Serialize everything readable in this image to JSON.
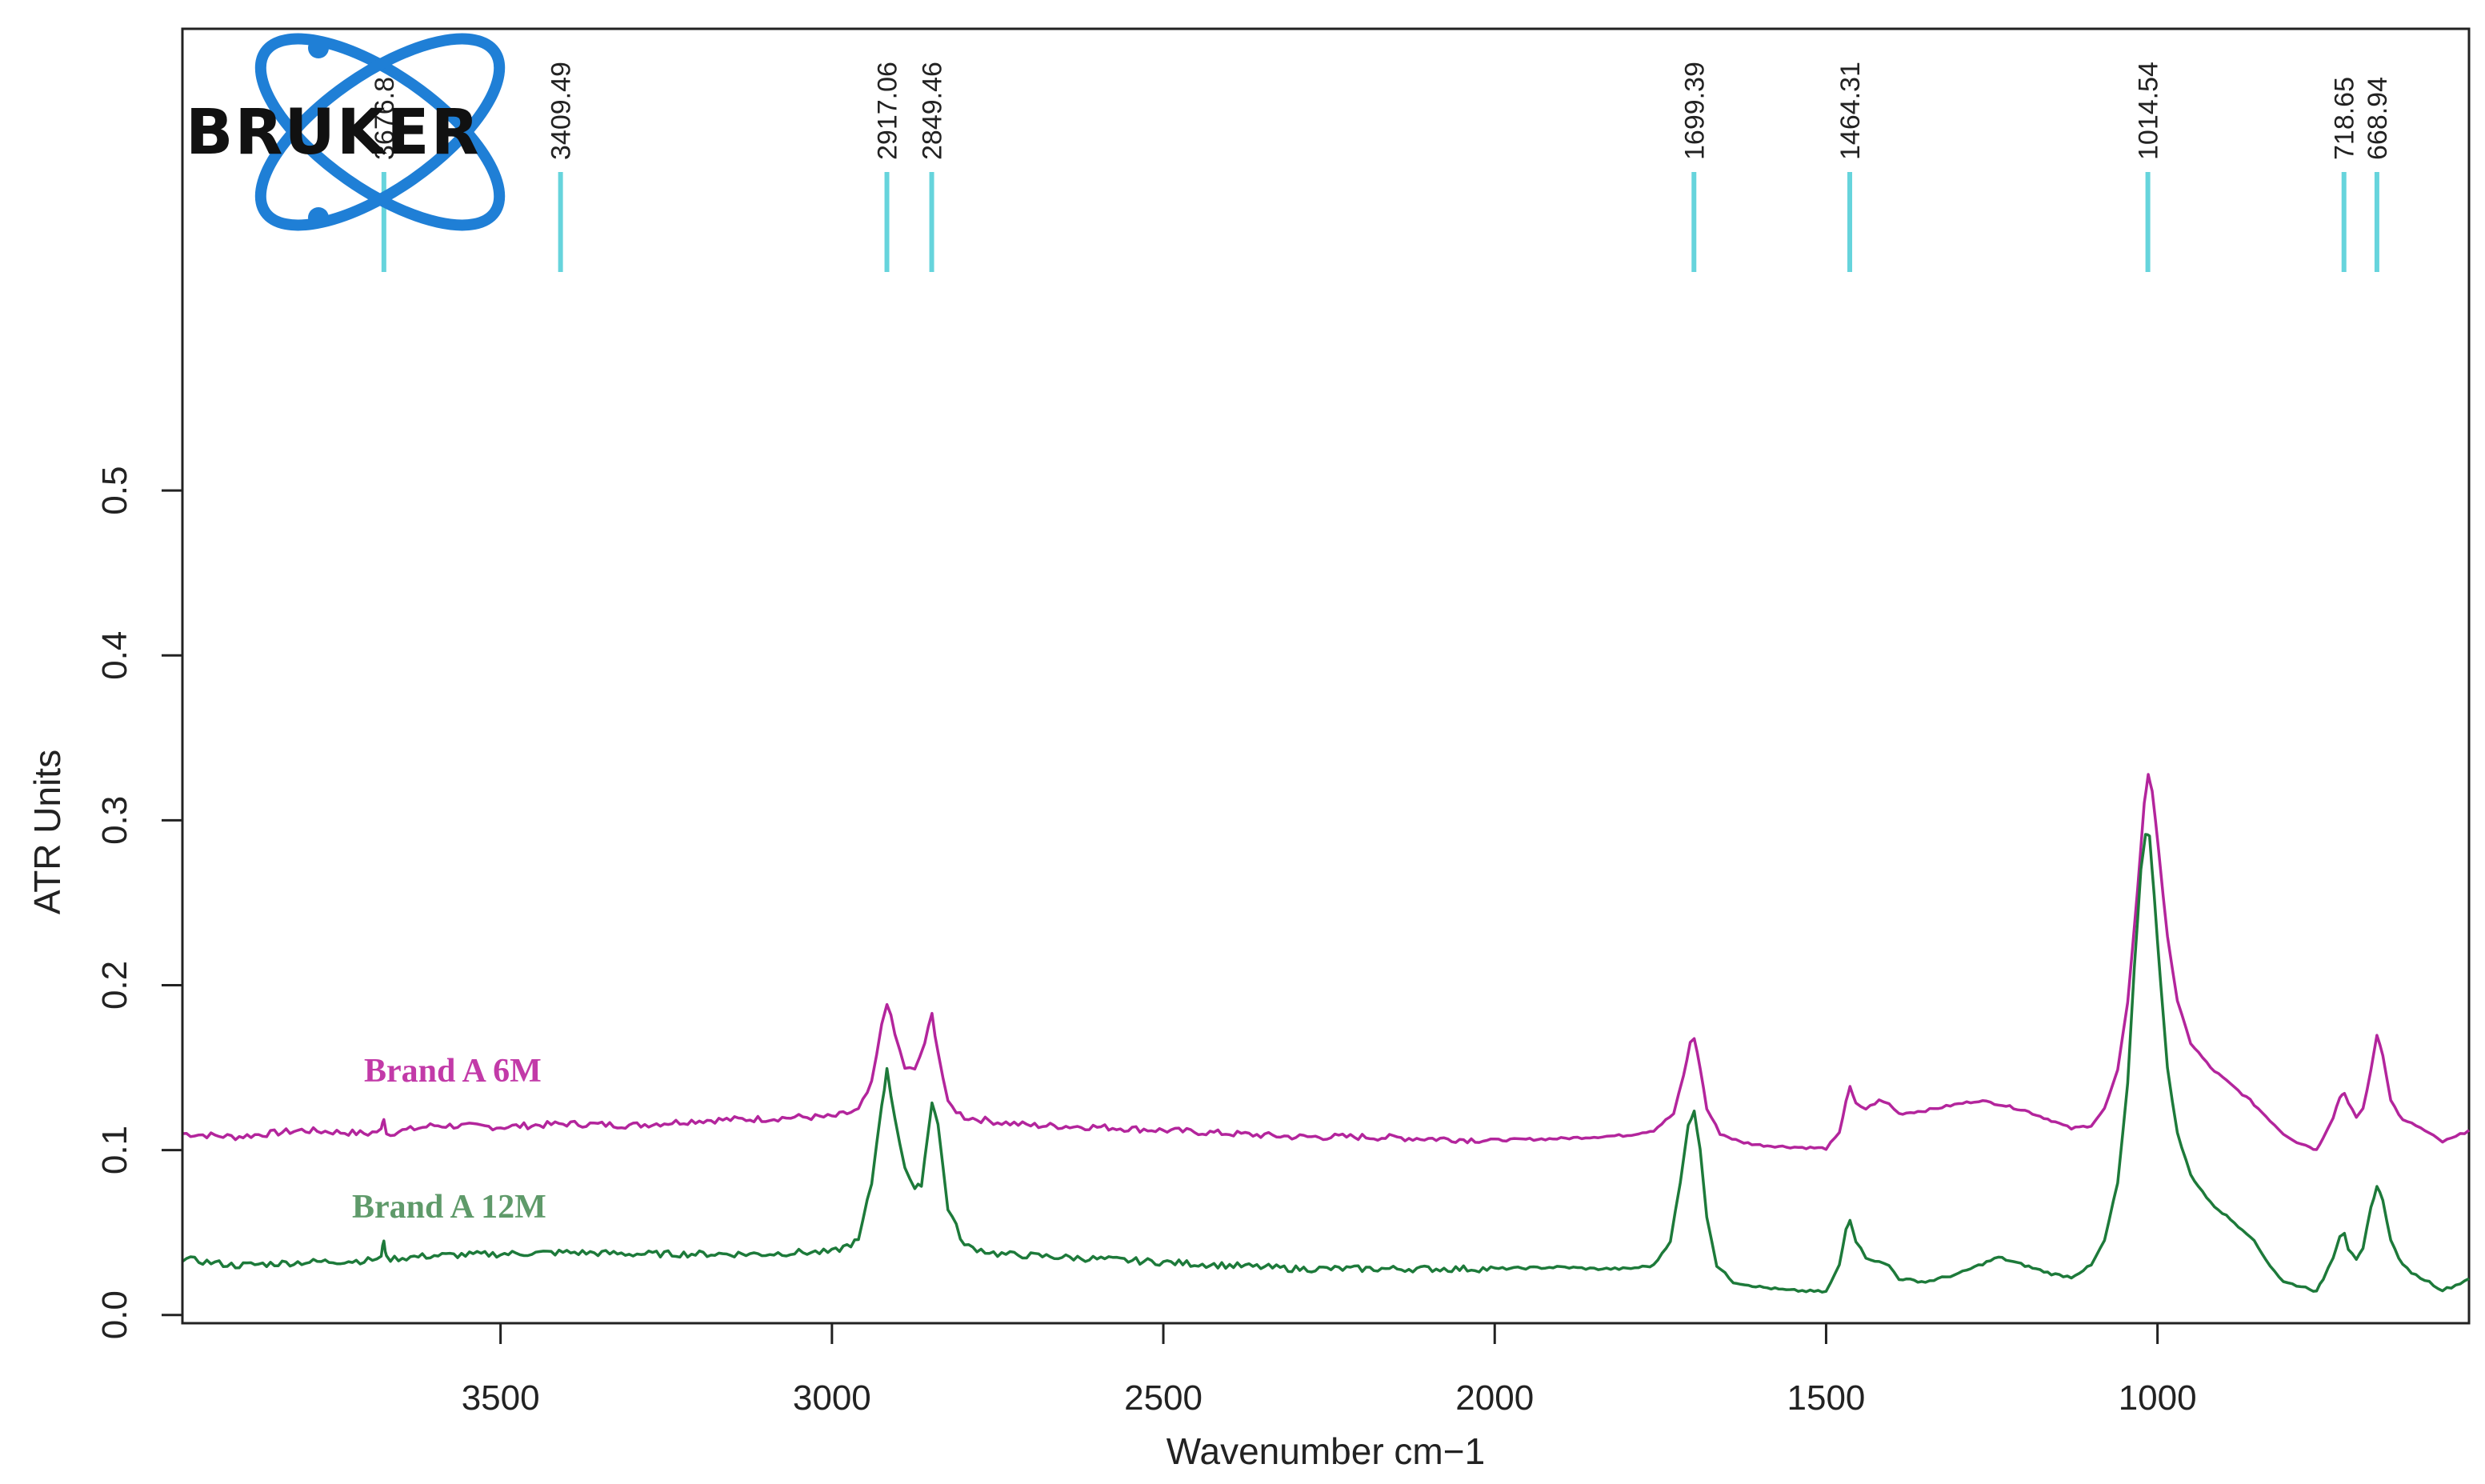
{
  "chart_data": {
    "type": "line",
    "title": "",
    "xlabel": "Wavenumber cm−1",
    "ylabel": "ATR Units",
    "xlim": [
      3980,
      530
    ],
    "ylim": [
      -0.005,
      0.78
    ],
    "x_ticks": [
      3500,
      3000,
      2500,
      2000,
      1500,
      1000
    ],
    "y_ticks": [
      0.0,
      0.1,
      0.2,
      0.3,
      0.4,
      0.5
    ],
    "x_tick_labels": [
      "3500",
      "3000",
      "2500",
      "2000",
      "1500",
      "1000"
    ],
    "y_tick_labels": [
      "0.0",
      "0.1",
      "0.2",
      "0.3",
      "0.4",
      "0.5"
    ],
    "grid": false,
    "peak_markers": [
      {
        "x": 3676,
        "label": "3676.8"
      },
      {
        "x": 3409.49,
        "label": "3409.49"
      },
      {
        "x": 2917.06,
        "label": "2917.06"
      },
      {
        "x": 2849.46,
        "label": "2849.46"
      },
      {
        "x": 1699.39,
        "label": "1699.39"
      },
      {
        "x": 1464.31,
        "label": "1464.31"
      },
      {
        "x": 1014.54,
        "label": "1014.54"
      },
      {
        "x": 718.65,
        "label": "718.65"
      },
      {
        "x": 668.94,
        "label": "668.94"
      }
    ],
    "series": [
      {
        "name": "Brand A 6M",
        "color": "#b3259c",
        "points": [
          [
            3980,
            0.11
          ],
          [
            3900,
            0.108
          ],
          [
            3800,
            0.112
          ],
          [
            3700,
            0.11
          ],
          [
            3680,
            0.112
          ],
          [
            3676,
            0.12
          ],
          [
            3672,
            0.11
          ],
          [
            3600,
            0.115
          ],
          [
            3500,
            0.114
          ],
          [
            3400,
            0.116
          ],
          [
            3300,
            0.115
          ],
          [
            3200,
            0.118
          ],
          [
            3100,
            0.119
          ],
          [
            3050,
            0.12
          ],
          [
            3000,
            0.12
          ],
          [
            2960,
            0.124
          ],
          [
            2940,
            0.14
          ],
          [
            2925,
            0.175
          ],
          [
            2917,
            0.19
          ],
          [
            2905,
            0.17
          ],
          [
            2890,
            0.15
          ],
          [
            2875,
            0.148
          ],
          [
            2860,
            0.165
          ],
          [
            2849,
            0.182
          ],
          [
            2840,
            0.16
          ],
          [
            2825,
            0.128
          ],
          [
            2800,
            0.12
          ],
          [
            2750,
            0.117
          ],
          [
            2700,
            0.115
          ],
          [
            2600,
            0.114
          ],
          [
            2500,
            0.112
          ],
          [
            2400,
            0.11
          ],
          [
            2300,
            0.108
          ],
          [
            2200,
            0.108
          ],
          [
            2100,
            0.107
          ],
          [
            2000,
            0.106
          ],
          [
            1900,
            0.107
          ],
          [
            1850,
            0.108
          ],
          [
            1800,
            0.109
          ],
          [
            1760,
            0.112
          ],
          [
            1730,
            0.122
          ],
          [
            1715,
            0.145
          ],
          [
            1705,
            0.165
          ],
          [
            1699,
            0.168
          ],
          [
            1690,
            0.15
          ],
          [
            1680,
            0.125
          ],
          [
            1660,
            0.11
          ],
          [
            1630,
            0.105
          ],
          [
            1600,
            0.103
          ],
          [
            1560,
            0.102
          ],
          [
            1500,
            0.101
          ],
          [
            1480,
            0.11
          ],
          [
            1470,
            0.13
          ],
          [
            1464,
            0.138
          ],
          [
            1455,
            0.128
          ],
          [
            1440,
            0.125
          ],
          [
            1420,
            0.13
          ],
          [
            1405,
            0.128
          ],
          [
            1390,
            0.122
          ],
          [
            1350,
            0.124
          ],
          [
            1300,
            0.128
          ],
          [
            1270,
            0.13
          ],
          [
            1240,
            0.128
          ],
          [
            1200,
            0.124
          ],
          [
            1160,
            0.118
          ],
          [
            1130,
            0.113
          ],
          [
            1100,
            0.115
          ],
          [
            1080,
            0.125
          ],
          [
            1060,
            0.148
          ],
          [
            1045,
            0.19
          ],
          [
            1030,
            0.258
          ],
          [
            1020,
            0.31
          ],
          [
            1014,
            0.328
          ],
          [
            1008,
            0.318
          ],
          [
            998,
            0.28
          ],
          [
            985,
            0.23
          ],
          [
            970,
            0.19
          ],
          [
            950,
            0.165
          ],
          [
            920,
            0.15
          ],
          [
            890,
            0.14
          ],
          [
            860,
            0.13
          ],
          [
            830,
            0.118
          ],
          [
            810,
            0.11
          ],
          [
            790,
            0.105
          ],
          [
            770,
            0.102
          ],
          [
            760,
            0.1
          ],
          [
            750,
            0.108
          ],
          [
            735,
            0.12
          ],
          [
            725,
            0.132
          ],
          [
            718,
            0.135
          ],
          [
            712,
            0.128
          ],
          [
            700,
            0.12
          ],
          [
            690,
            0.125
          ],
          [
            678,
            0.148
          ],
          [
            669,
            0.17
          ],
          [
            660,
            0.158
          ],
          [
            648,
            0.13
          ],
          [
            630,
            0.118
          ],
          [
            610,
            0.115
          ],
          [
            590,
            0.11
          ],
          [
            570,
            0.105
          ],
          [
            550,
            0.108
          ],
          [
            530,
            0.112
          ]
        ]
      },
      {
        "name": "Brand A 12M",
        "color": "#1d7a3a",
        "points": [
          [
            3980,
            0.034
          ],
          [
            3900,
            0.03
          ],
          [
            3800,
            0.032
          ],
          [
            3700,
            0.033
          ],
          [
            3680,
            0.035
          ],
          [
            3676,
            0.046
          ],
          [
            3672,
            0.034
          ],
          [
            3600,
            0.036
          ],
          [
            3500,
            0.037
          ],
          [
            3400,
            0.038
          ],
          [
            3300,
            0.037
          ],
          [
            3200,
            0.037
          ],
          [
            3100,
            0.037
          ],
          [
            3050,
            0.038
          ],
          [
            3000,
            0.038
          ],
          [
            2960,
            0.045
          ],
          [
            2940,
            0.08
          ],
          [
            2925,
            0.128
          ],
          [
            2917,
            0.148
          ],
          [
            2905,
            0.12
          ],
          [
            2890,
            0.09
          ],
          [
            2875,
            0.075
          ],
          [
            2865,
            0.08
          ],
          [
            2855,
            0.11
          ],
          [
            2849,
            0.13
          ],
          [
            2840,
            0.115
          ],
          [
            2825,
            0.065
          ],
          [
            2800,
            0.042
          ],
          [
            2750,
            0.037
          ],
          [
            2700,
            0.036
          ],
          [
            2600,
            0.034
          ],
          [
            2500,
            0.032
          ],
          [
            2400,
            0.03
          ],
          [
            2300,
            0.028
          ],
          [
            2200,
            0.028
          ],
          [
            2100,
            0.028
          ],
          [
            2000,
            0.028
          ],
          [
            1900,
            0.029
          ],
          [
            1850,
            0.028
          ],
          [
            1800,
            0.028
          ],
          [
            1760,
            0.03
          ],
          [
            1735,
            0.045
          ],
          [
            1720,
            0.08
          ],
          [
            1708,
            0.115
          ],
          [
            1699,
            0.124
          ],
          [
            1690,
            0.1
          ],
          [
            1680,
            0.06
          ],
          [
            1665,
            0.03
          ],
          [
            1640,
            0.02
          ],
          [
            1600,
            0.017
          ],
          [
            1560,
            0.015
          ],
          [
            1500,
            0.014
          ],
          [
            1480,
            0.03
          ],
          [
            1470,
            0.052
          ],
          [
            1464,
            0.058
          ],
          [
            1455,
            0.045
          ],
          [
            1440,
            0.035
          ],
          [
            1420,
            0.032
          ],
          [
            1405,
            0.03
          ],
          [
            1390,
            0.022
          ],
          [
            1350,
            0.02
          ],
          [
            1300,
            0.025
          ],
          [
            1270,
            0.03
          ],
          [
            1240,
            0.035
          ],
          [
            1200,
            0.03
          ],
          [
            1160,
            0.025
          ],
          [
            1130,
            0.023
          ],
          [
            1100,
            0.03
          ],
          [
            1080,
            0.045
          ],
          [
            1060,
            0.08
          ],
          [
            1045,
            0.14
          ],
          [
            1035,
            0.21
          ],
          [
            1025,
            0.27
          ],
          [
            1018,
            0.292
          ],
          [
            1012,
            0.29
          ],
          [
            1005,
            0.255
          ],
          [
            995,
            0.2
          ],
          [
            985,
            0.15
          ],
          [
            970,
            0.11
          ],
          [
            950,
            0.085
          ],
          [
            920,
            0.068
          ],
          [
            890,
            0.058
          ],
          [
            860,
            0.048
          ],
          [
            830,
            0.03
          ],
          [
            810,
            0.02
          ],
          [
            790,
            0.018
          ],
          [
            770,
            0.016
          ],
          [
            760,
            0.014
          ],
          [
            750,
            0.022
          ],
          [
            735,
            0.035
          ],
          [
            725,
            0.048
          ],
          [
            718,
            0.05
          ],
          [
            712,
            0.04
          ],
          [
            700,
            0.033
          ],
          [
            690,
            0.04
          ],
          [
            678,
            0.065
          ],
          [
            669,
            0.078
          ],
          [
            660,
            0.07
          ],
          [
            648,
            0.045
          ],
          [
            630,
            0.03
          ],
          [
            610,
            0.024
          ],
          [
            590,
            0.02
          ],
          [
            570,
            0.015
          ],
          [
            550,
            0.018
          ],
          [
            530,
            0.022
          ]
        ]
      }
    ]
  },
  "logo": {
    "text": "BRUKER",
    "color": "#1f7fd6"
  }
}
